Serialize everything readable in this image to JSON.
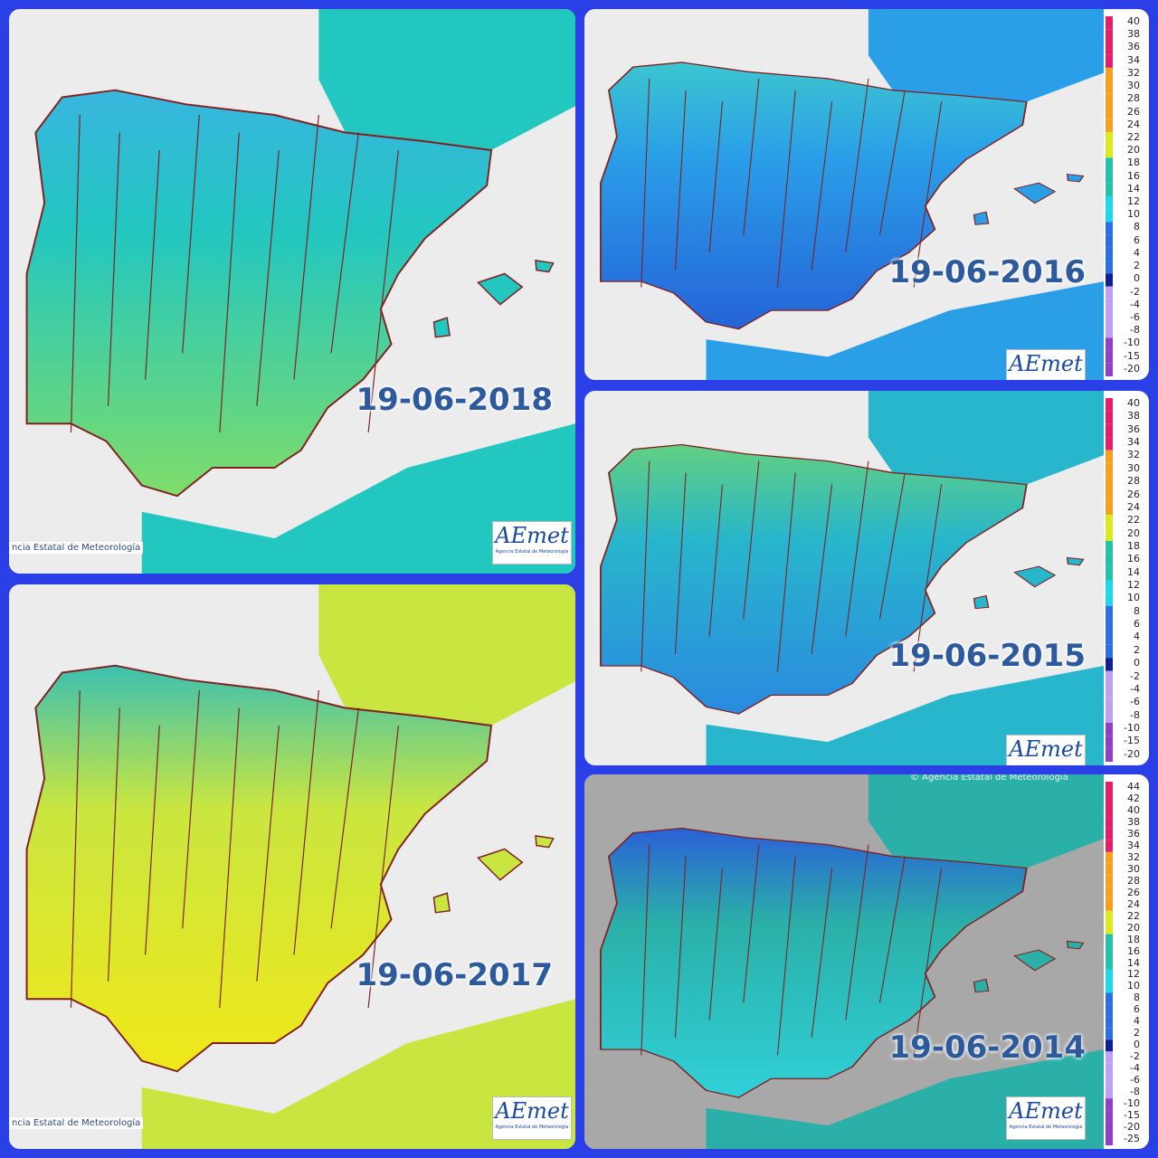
{
  "panels": [
    {
      "date": "19-06-2018",
      "footer": "ncia Estatal de Meteorología",
      "logo": "AEmet",
      "logo_sub": "Agencia Estatal de Meteorología"
    },
    {
      "date": "19-06-2016",
      "logo": "AEmet"
    },
    {
      "date": "19-06-2015",
      "logo": "AEmet"
    },
    {
      "date": "19-06-2017",
      "footer": "ncia Estatal de Meteorología",
      "logo": "AEmet",
      "logo_sub": "Agencia Estatal de Meteorología"
    },
    {
      "date": "19-06-2014",
      "copyright": "© Agencia Estatal de Meteorología",
      "logo": "AEmet",
      "logo_sub": "Agencia Estatal de Meteorología"
    }
  ],
  "legend_a": [
    40,
    38,
    36,
    34,
    32,
    30,
    28,
    26,
    24,
    22,
    20,
    18,
    16,
    14,
    12,
    10,
    8,
    6,
    4,
    2,
    0,
    -2,
    -4,
    -6,
    -8,
    -10,
    -15,
    -20
  ],
  "legend_b": [
    44,
    42,
    40,
    38,
    36,
    34,
    32,
    30,
    28,
    26,
    24,
    22,
    20,
    18,
    16,
    14,
    12,
    10,
    8,
    6,
    4,
    2,
    0,
    -2,
    -4,
    -6,
    -8,
    -10,
    -15,
    -20,
    -25
  ]
}
